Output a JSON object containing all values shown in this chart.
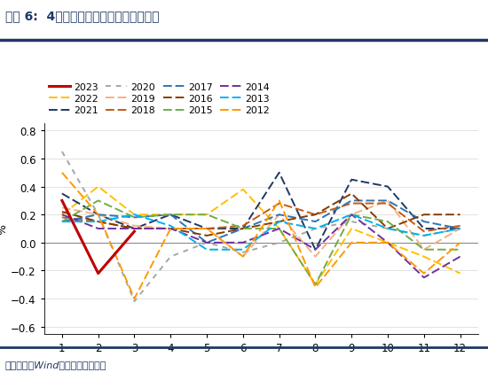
{
  "title": "图表 6:  4月非食品分项环比持平转为上涨",
  "ylabel": "%",
  "xlim": [
    0.5,
    12.5
  ],
  "ylim": [
    -0.65,
    0.85
  ],
  "yticks": [
    -0.6,
    -0.4,
    -0.2,
    0,
    0.2,
    0.4,
    0.6,
    0.8
  ],
  "xticks": [
    1,
    2,
    3,
    4,
    5,
    6,
    7,
    8,
    9,
    10,
    11,
    12
  ],
  "source": "资料来源：Wind，国盛证券研究所",
  "header_color": "#1F3864",
  "series": [
    {
      "label": "2023",
      "color": "#C00000",
      "linestyle": "solid",
      "linewidth": 2.2,
      "dashes": null,
      "data": [
        0.3,
        -0.22,
        0.08,
        null,
        null,
        null,
        null,
        null,
        null,
        null,
        null,
        null
      ]
    },
    {
      "label": "2022",
      "color": "#FFC000",
      "linestyle": "dashed",
      "linewidth": 1.4,
      "dashes": [
        5,
        2
      ],
      "data": [
        0.2,
        0.4,
        0.2,
        0.2,
        0.2,
        0.38,
        0.1,
        -0.3,
        0.1,
        0.0,
        -0.1,
        -0.22
      ]
    },
    {
      "label": "2021",
      "color": "#1F3864",
      "linestyle": "dashed",
      "linewidth": 1.4,
      "dashes": [
        5,
        2
      ],
      "data": [
        0.35,
        0.2,
        0.1,
        0.2,
        0.1,
        0.1,
        0.5,
        -0.05,
        0.45,
        0.4,
        0.1,
        0.1
      ]
    },
    {
      "label": "2020",
      "color": "#A6A6A6",
      "linestyle": "dashed",
      "linewidth": 1.4,
      "dashes": [
        3,
        3
      ],
      "data": [
        0.65,
        0.2,
        -0.42,
        -0.1,
        0.0,
        -0.07,
        0.0,
        0.1,
        0.15,
        0.1,
        0.05,
        0.1
      ]
    },
    {
      "label": "2019",
      "color": "#F4B183",
      "linestyle": "dashed",
      "linewidth": 1.4,
      "dashes": [
        5,
        2
      ],
      "data": [
        0.25,
        0.2,
        0.12,
        0.1,
        0.1,
        -0.1,
        0.2,
        -0.1,
        0.2,
        0.3,
        -0.05,
        0.1
      ]
    },
    {
      "label": "2018",
      "color": "#C55A11",
      "linestyle": "dashed",
      "linewidth": 1.4,
      "dashes": [
        5,
        2
      ],
      "data": [
        0.18,
        0.15,
        0.1,
        0.1,
        0.1,
        0.12,
        0.28,
        0.2,
        0.28,
        0.28,
        0.08,
        0.12
      ]
    },
    {
      "label": "2017",
      "color": "#2E75B6",
      "linestyle": "dashed",
      "linewidth": 1.4,
      "dashes": [
        5,
        2
      ],
      "data": [
        0.15,
        0.2,
        0.18,
        0.2,
        0.0,
        0.1,
        0.2,
        0.15,
        0.3,
        0.3,
        0.15,
        0.1
      ]
    },
    {
      "label": "2016",
      "color": "#833C00",
      "linestyle": "dashed",
      "linewidth": 1.4,
      "dashes": [
        5,
        2
      ],
      "data": [
        0.22,
        0.15,
        0.1,
        0.1,
        0.05,
        0.1,
        0.15,
        0.2,
        0.35,
        0.1,
        0.2,
        0.2
      ]
    },
    {
      "label": "2015",
      "color": "#70AD47",
      "linestyle": "dashed",
      "linewidth": 1.4,
      "dashes": [
        5,
        2
      ],
      "data": [
        0.15,
        0.3,
        0.18,
        0.2,
        0.2,
        0.1,
        0.1,
        -0.3,
        0.2,
        0.15,
        -0.05,
        -0.05
      ]
    },
    {
      "label": "2014",
      "color": "#7030A0",
      "linestyle": "dashed",
      "linewidth": 1.4,
      "dashes": [
        5,
        2
      ],
      "data": [
        0.2,
        0.1,
        0.1,
        0.1,
        0.0,
        0.0,
        0.1,
        -0.05,
        0.2,
        0.0,
        -0.25,
        -0.1
      ]
    },
    {
      "label": "2013",
      "color": "#00B0F0",
      "linestyle": "dashed",
      "linewidth": 1.4,
      "dashes": [
        5,
        2
      ],
      "data": [
        0.15,
        0.15,
        0.2,
        0.12,
        -0.05,
        -0.05,
        0.15,
        0.1,
        0.2,
        0.1,
        0.05,
        0.1
      ]
    },
    {
      "label": "2012",
      "color": "#FF9900",
      "linestyle": "dashed",
      "linewidth": 1.4,
      "dashes": [
        5,
        2
      ],
      "data": [
        0.5,
        0.2,
        -0.4,
        0.1,
        0.1,
        -0.1,
        0.3,
        -0.32,
        0.0,
        0.0,
        -0.22,
        0.0
      ]
    }
  ]
}
